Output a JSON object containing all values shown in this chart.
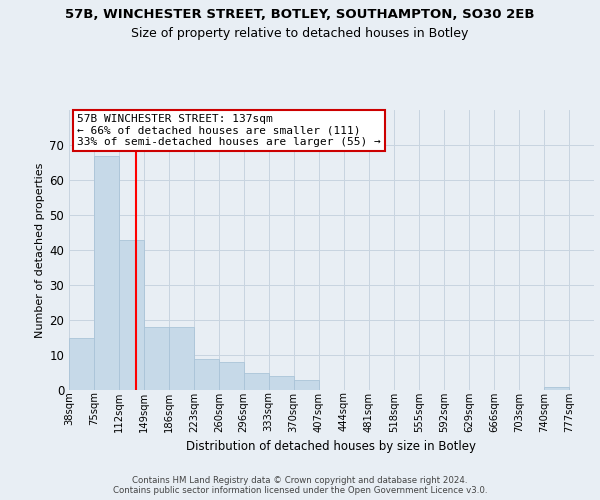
{
  "title_main": "57B, WINCHESTER STREET, BOTLEY, SOUTHAMPTON, SO30 2EB",
  "title_sub": "Size of property relative to detached houses in Botley",
  "xlabel": "Distribution of detached houses by size in Botley",
  "ylabel": "Number of detached properties",
  "bin_labels": [
    "38sqm",
    "75sqm",
    "112sqm",
    "149sqm",
    "186sqm",
    "223sqm",
    "260sqm",
    "296sqm",
    "333sqm",
    "370sqm",
    "407sqm",
    "444sqm",
    "481sqm",
    "518sqm",
    "555sqm",
    "592sqm",
    "629sqm",
    "666sqm",
    "703sqm",
    "740sqm",
    "777sqm"
  ],
  "bin_edges": [
    38,
    75,
    112,
    149,
    186,
    223,
    260,
    296,
    333,
    370,
    407,
    444,
    481,
    518,
    555,
    592,
    629,
    666,
    703,
    740,
    777
  ],
  "bar_heights": [
    15,
    67,
    43,
    18,
    18,
    9,
    8,
    5,
    4,
    3,
    0,
    0,
    0,
    0,
    0,
    0,
    0,
    0,
    0,
    1,
    0
  ],
  "bar_color": "#c6d9e8",
  "bar_edge_color": "#aac4d8",
  "red_line_x": 137,
  "annotation_text": "57B WINCHESTER STREET: 137sqm\n← 66% of detached houses are smaller (111)\n33% of semi-detached houses are larger (55) →",
  "annotation_box_color": "#ffffff",
  "annotation_box_edge": "#cc0000",
  "ylim": [
    0,
    80
  ],
  "yticks": [
    0,
    10,
    20,
    30,
    40,
    50,
    60,
    70
  ],
  "footer_text": "Contains HM Land Registry data © Crown copyright and database right 2024.\nContains public sector information licensed under the Open Government Licence v3.0.",
  "bg_color": "#e8eef4",
  "plot_bg_color": "#e8eef4",
  "grid_color": "#c8d4e0"
}
